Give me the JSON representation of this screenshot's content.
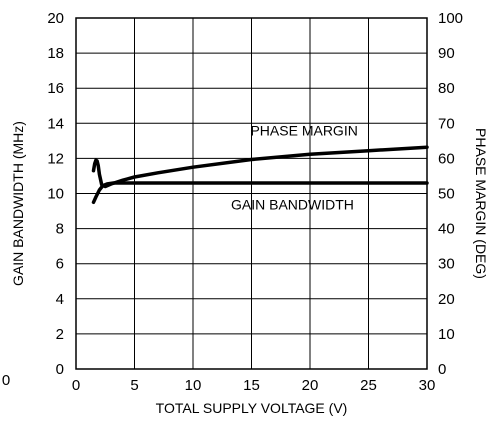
{
  "chart_data": {
    "type": "line",
    "title": "",
    "xlabel": "TOTAL SUPPLY VOLTAGE (V)",
    "ylabel_left": "GAIN BANDWIDTH (MHz)",
    "ylabel_right": "PHASE MARGIN (DEG)",
    "xlim": [
      0,
      30
    ],
    "ylim_left": [
      0,
      20
    ],
    "ylim_right": [
      0,
      100
    ],
    "x_ticks": [
      "0",
      "5",
      "10",
      "15",
      "20",
      "25",
      "30"
    ],
    "y_ticks_left": [
      "0",
      "2",
      "4",
      "6",
      "8",
      "10",
      "12",
      "14",
      "16",
      "18",
      "20"
    ],
    "y_ticks_right": [
      "0",
      "10",
      "20",
      "30",
      "40",
      "50",
      "60",
      "70",
      "80",
      "90",
      "100"
    ],
    "stray_label": "0",
    "grid": true,
    "series": [
      {
        "name": "PHASE MARGIN",
        "axis": "right",
        "x": [
          1.5,
          1.6,
          1.7,
          1.8,
          1.9,
          2.0,
          2.2,
          2.5,
          3,
          4,
          5,
          7,
          10,
          15,
          20,
          25,
          30
        ],
        "y": [
          56.5,
          58.5,
          59.5,
          59.3,
          58.0,
          55.5,
          52.5,
          52.0,
          52.7,
          53.8,
          54.7,
          55.9,
          57.5,
          59.7,
          61.2,
          62.2,
          63.2
        ]
      },
      {
        "name": "GAIN BANDWIDTH",
        "axis": "left",
        "x": [
          1.5,
          1.7,
          2.0,
          2.3,
          2.7,
          3.2,
          4.0,
          5,
          10,
          15,
          20,
          25,
          30
        ],
        "y": [
          9.5,
          9.8,
          10.2,
          10.45,
          10.55,
          10.6,
          10.6,
          10.6,
          10.6,
          10.6,
          10.6,
          10.6,
          10.6
        ]
      }
    ],
    "annotations": [
      {
        "text": "PHASE MARGIN",
        "x": 19.5,
        "y_right": 66.5
      },
      {
        "text": "GAIN BANDWIDTH",
        "x": 18.5,
        "y_right": 45.5
      }
    ]
  }
}
